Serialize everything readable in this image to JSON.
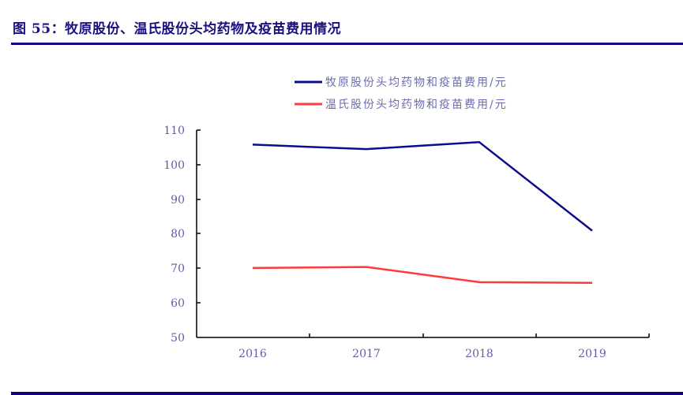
{
  "header": {
    "title": "图 55：牧原股份、温氏股份头均药物及疫苗费用情况"
  },
  "colors": {
    "series_1": "#0b0d8a",
    "series_2": "#ff3a3a",
    "axis": "#000000",
    "tick_text": "#5d5fa8",
    "rule": "#14007a"
  },
  "chart_data": {
    "type": "line",
    "title": "牧原股份、温氏股份头均药物及疫苗费用情况",
    "categories": [
      "2016",
      "2017",
      "2018",
      "2019"
    ],
    "series": [
      {
        "name": "牧原股份头均药物和疫苗费用/元",
        "values": [
          105.8,
          104.5,
          106.5,
          80.9
        ]
      },
      {
        "name": "温氏股份头均药物和疫苗费用/元",
        "values": [
          70.1,
          70.4,
          66.0,
          65.8
        ]
      }
    ],
    "xlabel": "",
    "ylabel": "",
    "ylim": [
      50,
      110
    ],
    "yticks": [
      "110",
      "100",
      "90",
      "80",
      "70",
      "60",
      "50"
    ],
    "grid": false,
    "legend_position": "top"
  }
}
